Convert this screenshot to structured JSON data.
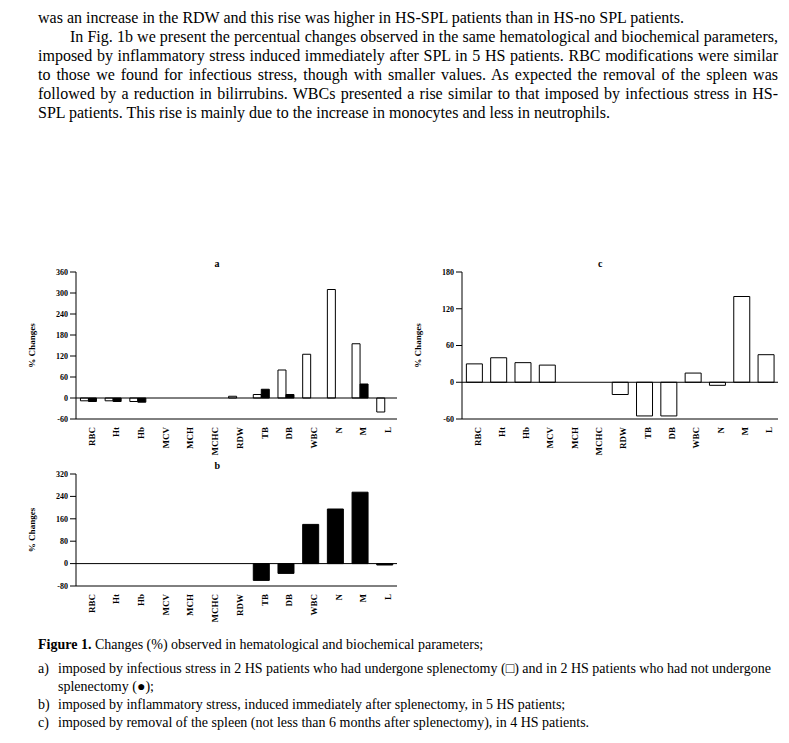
{
  "paragraphs": [
    "was an increase in the RDW and this rise was higher in HS-SPL patients than in HS-no SPL patients.",
    "In Fig. 1b we present the percentual changes observed in the same hematological and biochemical parameters, imposed by inflammatory stress induced immediately after SPL in 5 HS patients. RBC modifications were similar to those we found for infectious stress, though with smaller values. As expected the removal of the spleen was followed by a reduction in bilirrubins. WBCs presented a rise similar to that imposed by infectious stress in HS-SPL patients. This rise is mainly due to the increase in monocytes and less in neutrophils."
  ],
  "chart_data": [
    {
      "type": "bar",
      "title": "a",
      "y_label": "% Changes",
      "categories": [
        "RBC",
        "Ht",
        "Hb",
        "MCV",
        "MCH",
        "MCHC",
        "RDW",
        "TB",
        "DB",
        "WBC",
        "N",
        "M",
        "L"
      ],
      "ylim": [
        -60,
        360
      ],
      "yticks": [
        -60,
        0,
        60,
        120,
        180,
        240,
        300,
        360
      ],
      "series": [
        {
          "color": "#ffffff",
          "values": [
            -8,
            -8,
            -10,
            0,
            0,
            0,
            5,
            10,
            80,
            125,
            310,
            155,
            -40
          ]
        },
        {
          "color": "#000000",
          "values": [
            -10,
            -10,
            -12,
            0,
            0,
            0,
            0,
            25,
            10,
            0,
            0,
            40,
            0
          ]
        }
      ]
    },
    {
      "type": "bar",
      "title": "b",
      "y_label": "% Changes",
      "categories": [
        "RBC",
        "Ht",
        "Hb",
        "MCV",
        "MCH",
        "MCHC",
        "RDW",
        "TB",
        "DB",
        "WBC",
        "N",
        "M",
        "L"
      ],
      "ylim": [
        -80,
        320
      ],
      "yticks": [
        -80,
        0,
        80,
        160,
        240,
        320
      ],
      "series": [
        {
          "color": "#000000",
          "values": [
            0,
            0,
            0,
            0,
            0,
            0,
            0,
            -60,
            -35,
            140,
            195,
            255,
            -5
          ]
        }
      ]
    },
    {
      "type": "bar",
      "title": "c",
      "y_label": "% Changes",
      "categories": [
        "RBC",
        "Ht",
        "Hb",
        "MCV",
        "MCH",
        "MCHC",
        "RDW",
        "TB",
        "DB",
        "WBC",
        "N",
        "M",
        "L"
      ],
      "ylim": [
        -60,
        180
      ],
      "yticks": [
        -60,
        0,
        60,
        120,
        180
      ],
      "series": [
        {
          "color": "#ffffff",
          "values": [
            30,
            40,
            32,
            28,
            0,
            0,
            -20,
            -55,
            -55,
            15,
            -5,
            140,
            45
          ]
        }
      ]
    }
  ],
  "caption": {
    "title": "Figure 1.",
    "text": "Changes (%) observed in hematological and biochemical parameters;",
    "items": [
      {
        "label": "a)",
        "text": "imposed by infectious stress in 2 HS patients who had undergone splenectomy (□) and in 2 HS patients who had not undergone splenectomy (●);"
      },
      {
        "label": "b)",
        "text": "imposed by inflammatory stress, induced immediately after splenectomy, in 5 HS patients;"
      },
      {
        "label": "c)",
        "text": "imposed by removal of the spleen (not less than 6 months after splenectomy), in 4 HS patients."
      }
    ]
  }
}
